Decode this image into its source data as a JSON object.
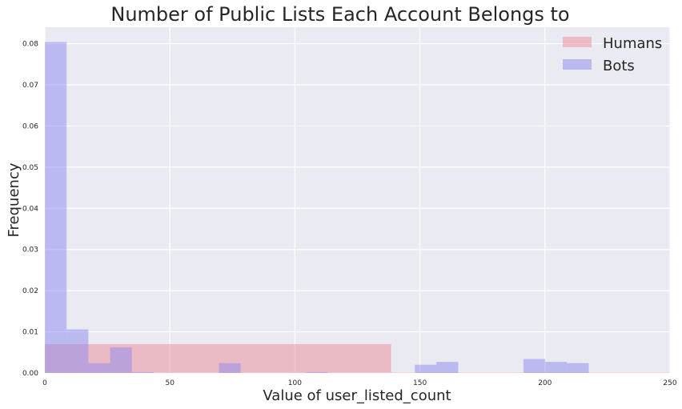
{
  "chart_data": {
    "type": "bar",
    "title": "Number of Public Lists Each Account Belongs to",
    "xlabel": "Value of user_listed_count",
    "ylabel": "Frequency",
    "xlim": [
      0,
      250
    ],
    "ylim": [
      0,
      0.084
    ],
    "xticks": [
      0,
      50,
      100,
      150,
      200,
      250
    ],
    "yticks": [
      0.0,
      0.01,
      0.02,
      0.03,
      0.04,
      0.05,
      0.06,
      0.07,
      0.08
    ],
    "ytick_labels": [
      "0.00",
      "0.01",
      "0.02",
      "0.03",
      "0.04",
      "0.05",
      "0.06",
      "0.07",
      "0.08"
    ],
    "grid": true,
    "legend_position": "top-right",
    "series": [
      {
        "name": "Humans",
        "color": "#ee8a96",
        "bins": [
          {
            "x0": 0,
            "x1": 138.5,
            "value": 0.007
          },
          {
            "x0": 138.5,
            "x1": 250,
            "value": 0.0001
          }
        ]
      },
      {
        "name": "Bots",
        "color": "#8a8af0",
        "bins": [
          {
            "x0": 0,
            "x1": 8.7,
            "value": 0.0804
          },
          {
            "x0": 8.7,
            "x1": 17.4,
            "value": 0.0106
          },
          {
            "x0": 17.4,
            "x1": 26.1,
            "value": 0.0024
          },
          {
            "x0": 26.1,
            "x1": 34.8,
            "value": 0.0062
          },
          {
            "x0": 34.8,
            "x1": 43.5,
            "value": 0.0002
          },
          {
            "x0": 69.6,
            "x1": 78.3,
            "value": 0.0024
          },
          {
            "x0": 104.4,
            "x1": 113.1,
            "value": 0.0002
          },
          {
            "x0": 148.0,
            "x1": 156.6,
            "value": 0.002
          },
          {
            "x0": 156.6,
            "x1": 165.3,
            "value": 0.0027
          },
          {
            "x0": 191.4,
            "x1": 200.1,
            "value": 0.0034
          },
          {
            "x0": 200.1,
            "x1": 208.8,
            "value": 0.0027
          },
          {
            "x0": 208.8,
            "x1": 217.5,
            "value": 0.0024
          }
        ]
      }
    ]
  }
}
